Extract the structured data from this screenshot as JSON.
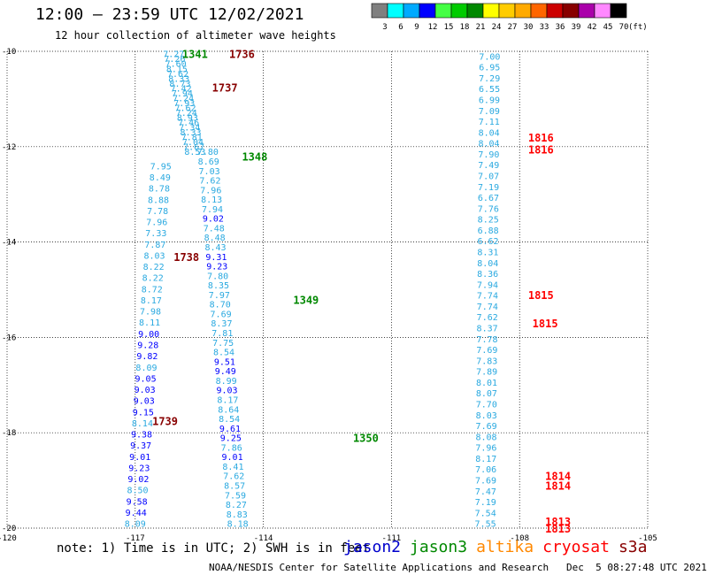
{
  "header": {
    "title": "12:00 — 23:59 UTC 12/02/2021",
    "subtitle": "12 hour collection of altimeter wave heights"
  },
  "footer": {
    "note": "note: 1) Time is in UTC; 2) SWH is in feet",
    "credit": "NOAA/NESDIS Center for Satellite Applications and Research   Dec  5 08:27:48 UTC 2021"
  },
  "satellites": [
    {
      "name": "jason2",
      "color": "#0000cc"
    },
    {
      "name": "jason3",
      "color": "#008800"
    },
    {
      "name": "altika",
      "color": "#ff8800"
    },
    {
      "name": "cryosat",
      "color": "#ff0000"
    },
    {
      "name": "s3a",
      "color": "#880000"
    }
  ],
  "colorbar": {
    "labels": [
      "3",
      "6",
      "9",
      "12",
      "15",
      "18",
      "21",
      "24",
      "27",
      "30",
      "33",
      "36",
      "39",
      "42",
      "45",
      "70"
    ],
    "unit": "(ft)",
    "colors": [
      "#808080",
      "#00ffff",
      "#00aaff",
      "#0000ff",
      "#44ff44",
      "#00cc00",
      "#008800",
      "#ffff00",
      "#ffcc00",
      "#ffaa00",
      "#ff6600",
      "#cc0000",
      "#880000",
      "#aa00aa",
      "#ff88ff",
      "#000000"
    ],
    "swh_min": 3
  },
  "chart_data": {
    "type": "scatter",
    "xlim": [
      -120,
      -105
    ],
    "ylim": [
      -20,
      -10
    ],
    "x_ticks": [
      -120,
      -117,
      -114,
      -111,
      -108,
      -105
    ],
    "y_ticks": [
      -10,
      -12,
      -14,
      -16,
      -18,
      -20
    ],
    "xlabel": "",
    "ylabel": "",
    "grid": true,
    "tracks": [
      {
        "label": "1736",
        "color": "#880000",
        "lx": -114.8,
        "ly": -10.05,
        "x0": -116.1,
        "x1": -115.6,
        "values": [
          7.27,
          7.26,
          7.6,
          8.15,
          7.62,
          8.33,
          8.73,
          7.42,
          7.94,
          7.24,
          7.93,
          7.62,
          7.24,
          8.93,
          7.46,
          7.34,
          8.33,
          7.81,
          7.04,
          7.67,
          8.53
        ]
      },
      {
        "label": "1341",
        "color": "#008800",
        "lx": -115.9,
        "ly": -10.05,
        "x0": 0,
        "x1": 0,
        "values": []
      },
      {
        "label": "1737",
        "color": "#880000",
        "lx": -115.2,
        "ly": -10.75,
        "x0": 0,
        "x1": 0,
        "values": []
      },
      {
        "label": "1348",
        "color": "#008800",
        "lx": -114.5,
        "ly": -12.2,
        "x0": -115.3,
        "x1": -114.6,
        "values": [
          7.8,
          8.69,
          7.03,
          7.62,
          7.96,
          8.13,
          7.94,
          9.02,
          7.48,
          8.48,
          8.43,
          9.31,
          9.23,
          7.8,
          8.35,
          7.97,
          8.7,
          7.69,
          8.37,
          7.81,
          7.75,
          8.54,
          9.51,
          9.49,
          8.99,
          9.03,
          8.17,
          8.64,
          8.54,
          9.61,
          9.25,
          7.86,
          9.01,
          8.41,
          7.62,
          8.57,
          7.59,
          8.27,
          8.83,
          8.18
        ]
      },
      {
        "label": "1738",
        "color": "#880000",
        "lx": -116.1,
        "ly": -14.3,
        "x0": -116.4,
        "x1": -117.0,
        "values": [
          7.95,
          8.49,
          8.78,
          8.88,
          7.78,
          7.96,
          7.33,
          7.87,
          8.03,
          8.22,
          8.22,
          8.72,
          8.17,
          7.98,
          8.11,
          9.0,
          9.28,
          9.82,
          8.09,
          9.05,
          9.03,
          9.03,
          9.15,
          8.14,
          9.38,
          9.37,
          9.01,
          9.23,
          9.02,
          8.5,
          9.58,
          9.44,
          8.09
        ]
      },
      {
        "label": "1349",
        "color": "#008800",
        "lx": -113.3,
        "ly": -15.2,
        "x0": 0,
        "x1": 0,
        "values": []
      },
      {
        "label": "1739",
        "color": "#880000",
        "lx": -116.6,
        "ly": -17.75,
        "x0": 0,
        "x1": 0,
        "values": []
      },
      {
        "label": "1350",
        "color": "#008800",
        "lx": -111.9,
        "ly": -18.1,
        "x0": 0,
        "x1": 0,
        "values": []
      },
      {
        "label": "1816",
        "color": "#ff0000",
        "lx": -107.8,
        "ly": -11.8,
        "x0": -108.7,
        "x1": -108.8,
        "values": [
          7.0,
          6.95,
          7.29,
          6.55,
          6.99,
          7.09,
          7.11,
          8.04,
          8.04,
          7.9,
          7.49,
          7.07,
          7.19,
          6.67,
          7.76,
          8.25,
          6.88,
          6.62,
          8.31,
          8.04,
          8.36,
          7.94,
          7.74,
          7.74,
          7.62,
          8.37,
          7.78,
          7.69,
          7.83,
          7.89,
          8.01,
          8.07,
          7.7,
          8.03,
          7.69,
          8.08,
          7.96,
          8.17,
          7.06,
          7.69,
          7.47,
          7.19,
          7.54,
          7.55
        ]
      },
      {
        "label": "1816",
        "color": "#ff0000",
        "lx": -107.8,
        "ly": -12.05,
        "x0": 0,
        "x1": 0,
        "values": []
      },
      {
        "label": "1815",
        "color": "#ff0000",
        "lx": -107.8,
        "ly": -15.1,
        "x0": 0,
        "x1": 0,
        "values": []
      },
      {
        "label": "1815",
        "color": "#ff0000",
        "lx": -107.7,
        "ly": -15.7,
        "x0": 0,
        "x1": 0,
        "values": []
      },
      {
        "label": "1814",
        "color": "#ff0000",
        "lx": -107.4,
        "ly": -18.9,
        "x0": 0,
        "x1": 0,
        "values": []
      },
      {
        "label": "1814",
        "color": "#ff0000",
        "lx": -107.4,
        "ly": -19.1,
        "x0": 0,
        "x1": 0,
        "values": []
      },
      {
        "label": "1813",
        "color": "#ff0000",
        "lx": -107.4,
        "ly": -19.85,
        "x0": 0,
        "x1": 0,
        "values": []
      },
      {
        "label": "1813",
        "color": "#ff0000",
        "lx": -107.4,
        "ly": -20.0,
        "x0": 0,
        "x1": 0,
        "values": []
      }
    ]
  }
}
